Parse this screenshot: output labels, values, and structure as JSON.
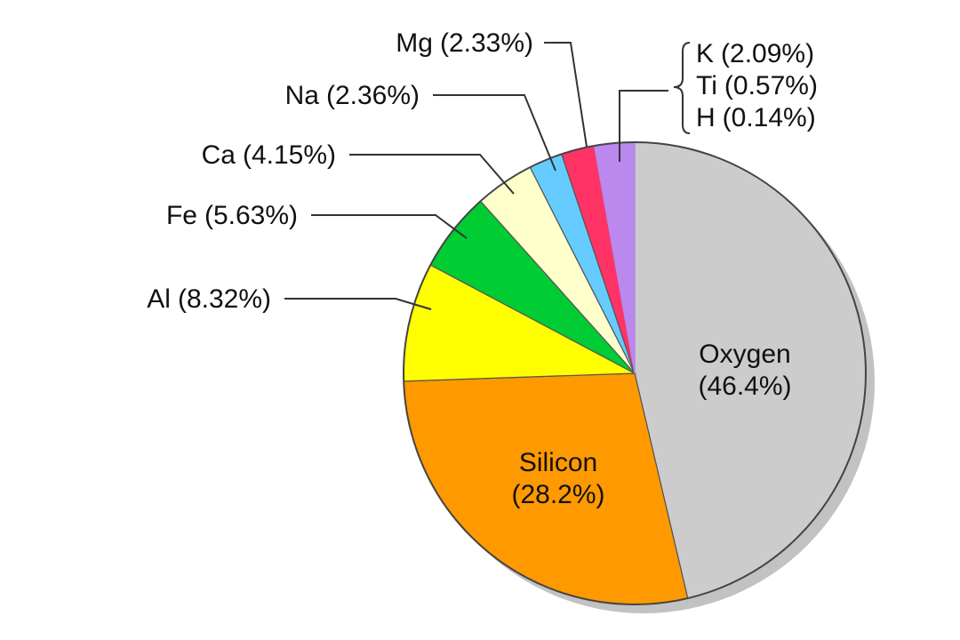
{
  "chart_data": {
    "type": "pie",
    "categories": [
      "Oxygen",
      "Silicon",
      "Al",
      "Fe",
      "Ca",
      "Na",
      "Mg",
      "K",
      "Ti",
      "H"
    ],
    "values": [
      46.4,
      28.2,
      8.32,
      5.63,
      4.15,
      2.36,
      2.33,
      2.09,
      0.57,
      0.14
    ],
    "value_labels": [
      "(46.4%)",
      "(28.2%)",
      "(8.32%)",
      "(5.63%)",
      "(4.15%)",
      "(2.36%)",
      "(2.33%)",
      "(2.09%)",
      "(0.57%)",
      "(0.14%)"
    ],
    "colors": [
      "#cccccc",
      "#ff9900",
      "#ffff00",
      "#00cc33",
      "#ffffcc",
      "#66ccff",
      "#ff3366",
      "#bb88ee",
      "#bb88ee",
      "#bb88ee"
    ]
  }
}
